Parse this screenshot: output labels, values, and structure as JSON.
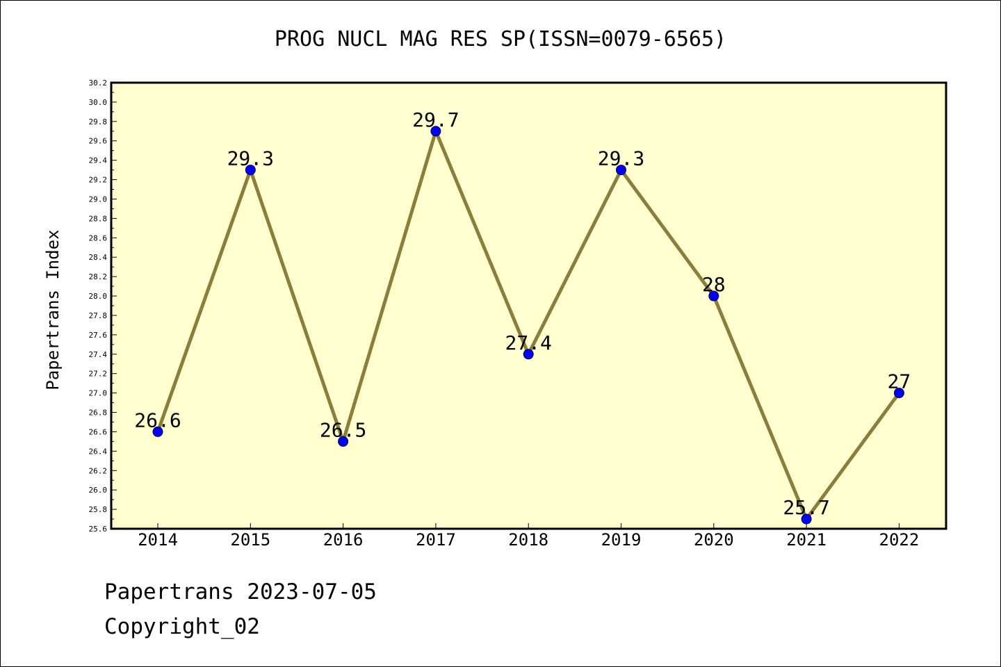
{
  "chart_data": {
    "type": "line",
    "title": "PROG NUCL MAG RES SP(ISSN=0079-6565)",
    "xlabel": "",
    "ylabel": "Papertrans Index",
    "categories": [
      "2014",
      "2015",
      "2016",
      "2017",
      "2018",
      "2019",
      "2020",
      "2021",
      "2022"
    ],
    "values": [
      26.6,
      29.3,
      26.5,
      29.7,
      27.4,
      29.3,
      28.0,
      25.7,
      27.0
    ],
    "data_labels": [
      "26.6",
      "29.3",
      "26.5",
      "29.7",
      "27.4",
      "29.3",
      "28",
      "25.7",
      "27"
    ],
    "ylim": [
      25.6,
      30.2
    ],
    "yticks": [
      "25.6",
      "25.8",
      "26.0",
      "26.2",
      "26.4",
      "26.6",
      "26.8",
      "27.0",
      "27.2",
      "27.4",
      "27.6",
      "27.8",
      "28.0",
      "28.2",
      "28.4",
      "28.6",
      "28.8",
      "29.0",
      "29.2",
      "29.4",
      "29.6",
      "29.8",
      "30.0",
      "30.2"
    ],
    "grid": false,
    "colors": {
      "plot_background": "#ffffd0",
      "line": "#8b7d3a",
      "marker": "#0000ff"
    }
  },
  "footer": {
    "line1": "Papertrans 2023-07-05",
    "line2": "Copyright_02"
  }
}
